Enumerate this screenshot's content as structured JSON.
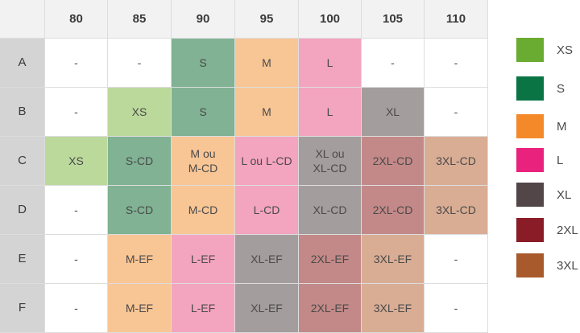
{
  "table": {
    "corner": "",
    "columns": [
      "80",
      "85",
      "90",
      "95",
      "100",
      "105",
      "110"
    ],
    "rows": [
      {
        "label": "A",
        "cells": [
          {
            "text": "-",
            "size": "empty"
          },
          {
            "text": "-",
            "size": "empty"
          },
          {
            "text": "S",
            "size": "s"
          },
          {
            "text": "M",
            "size": "m"
          },
          {
            "text": "L",
            "size": "l"
          },
          {
            "text": "-",
            "size": "empty"
          },
          {
            "text": "-",
            "size": "empty"
          }
        ]
      },
      {
        "label": "B",
        "cells": [
          {
            "text": "-",
            "size": "empty"
          },
          {
            "text": "XS",
            "size": "xs"
          },
          {
            "text": "S",
            "size": "s"
          },
          {
            "text": "M",
            "size": "m"
          },
          {
            "text": "L",
            "size": "l"
          },
          {
            "text": "XL",
            "size": "xl"
          },
          {
            "text": "-",
            "size": "empty"
          }
        ]
      },
      {
        "label": "C",
        "cells": [
          {
            "text": "XS",
            "size": "xs"
          },
          {
            "text": "S-CD",
            "size": "s"
          },
          {
            "text": "M ou\nM-CD",
            "size": "m"
          },
          {
            "text": "L ou L-CD",
            "size": "l"
          },
          {
            "text": "XL ou\nXL-CD",
            "size": "xl"
          },
          {
            "text": "2XL-CD",
            "size": "2xl"
          },
          {
            "text": "3XL-CD",
            "size": "3xl"
          }
        ]
      },
      {
        "label": "D",
        "cells": [
          {
            "text": "-",
            "size": "empty"
          },
          {
            "text": "S-CD",
            "size": "s"
          },
          {
            "text": "M-CD",
            "size": "m"
          },
          {
            "text": "L-CD",
            "size": "l"
          },
          {
            "text": "XL-CD",
            "size": "xl"
          },
          {
            "text": "2XL-CD",
            "size": "2xl"
          },
          {
            "text": "3XL-CD",
            "size": "3xl"
          }
        ]
      },
      {
        "label": "E",
        "cells": [
          {
            "text": "-",
            "size": "empty"
          },
          {
            "text": "M-EF",
            "size": "m"
          },
          {
            "text": "L-EF",
            "size": "l"
          },
          {
            "text": "XL-EF",
            "size": "xl"
          },
          {
            "text": "2XL-EF",
            "size": "2xl"
          },
          {
            "text": "3XL-EF",
            "size": "3xl"
          },
          {
            "text": "-",
            "size": "empty"
          }
        ]
      },
      {
        "label": "F",
        "cells": [
          {
            "text": "-",
            "size": "empty"
          },
          {
            "text": "M-EF",
            "size": "m"
          },
          {
            "text": "L-EF",
            "size": "l"
          },
          {
            "text": "XL-EF",
            "size": "xl"
          },
          {
            "text": "2XL-EF",
            "size": "2xl"
          },
          {
            "text": "3XL-EF",
            "size": "3xl"
          },
          {
            "text": "-",
            "size": "empty"
          }
        ]
      }
    ]
  },
  "legend": [
    {
      "label": "XS",
      "color": "#6aab31"
    },
    {
      "label": "S",
      "color": "#0a7445"
    },
    {
      "label": "M",
      "color": "#f4892a"
    },
    {
      "label": "L",
      "color": "#e9237d"
    },
    {
      "label": "XL",
      "color": "#524649"
    },
    {
      "label": "2XL",
      "color": "#8a1c27"
    },
    {
      "label": "3XL",
      "color": "#a85a2c"
    }
  ]
}
